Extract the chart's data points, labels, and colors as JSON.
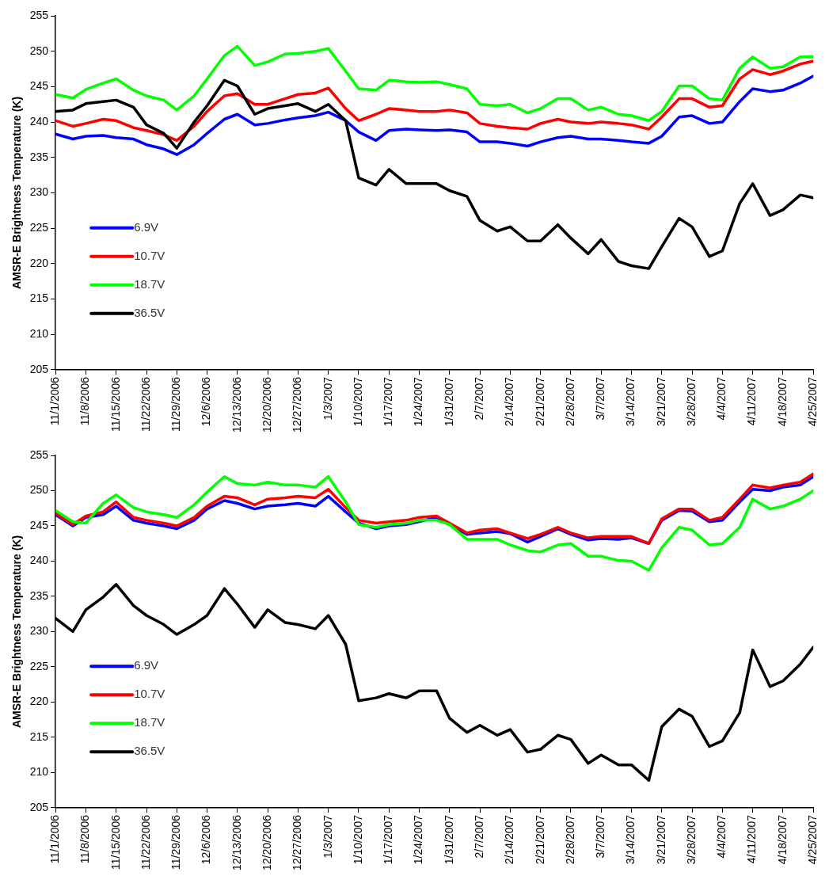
{
  "chart_data": [
    {
      "type": "line",
      "ylabel": "AMSR-E Brightness Temperature (K)",
      "x": [
        "2006-11-01",
        "2006-11-05",
        "2006-11-08",
        "2006-11-12",
        "2006-11-15",
        "2006-11-19",
        "2006-11-22",
        "2006-11-26",
        "2006-11-29",
        "2006-12-03",
        "2006-12-06",
        "2006-12-10",
        "2006-12-13",
        "2006-12-17",
        "2006-12-20",
        "2006-12-24",
        "2006-12-27",
        "2006-12-31",
        "2007-01-03",
        "2007-01-07",
        "2007-01-10",
        "2007-01-14",
        "2007-01-17",
        "2007-01-21",
        "2007-01-24",
        "2007-01-28",
        "2007-01-31",
        "2007-02-04",
        "2007-02-07",
        "2007-02-11",
        "2007-02-14",
        "2007-02-18",
        "2007-02-21",
        "2007-02-25",
        "2007-02-28",
        "2007-03-04",
        "2007-03-07",
        "2007-03-11",
        "2007-03-14",
        "2007-03-18",
        "2007-03-21",
        "2007-03-25",
        "2007-03-28",
        "2007-04-01",
        "2007-04-04",
        "2007-04-08",
        "2007-04-11",
        "2007-04-15",
        "2007-04-18",
        "2007-04-22",
        "2007-04-25"
      ],
      "series": [
        {
          "name": "6.9V",
          "color": "#0000ff",
          "values": [
            238.3,
            237.6,
            238.0,
            238.1,
            237.8,
            237.6,
            236.8,
            236.2,
            235.4,
            236.8,
            238.4,
            240.4,
            241.1,
            239.6,
            239.8,
            240.3,
            240.6,
            240.9,
            241.4,
            240.2,
            238.6,
            237.4,
            238.8,
            239.0,
            238.9,
            238.8,
            238.9,
            238.6,
            237.2,
            237.2,
            237.0,
            236.6,
            237.2,
            237.8,
            238.0,
            237.6,
            237.6,
            237.4,
            237.2,
            237.0,
            238.0,
            240.7,
            240.9,
            239.8,
            240.0,
            242.9,
            244.7,
            244.3,
            244.5,
            245.5,
            246.5
          ]
        },
        {
          "name": "10.7V",
          "color": "#ff0000",
          "values": [
            240.2,
            239.4,
            239.8,
            240.4,
            240.2,
            239.2,
            238.8,
            238.2,
            237.4,
            239.4,
            241.5,
            243.7,
            244.0,
            242.5,
            242.5,
            243.3,
            243.9,
            244.1,
            244.8,
            241.9,
            240.2,
            241.1,
            241.9,
            241.7,
            241.5,
            241.5,
            241.7,
            241.3,
            239.8,
            239.4,
            239.2,
            239.0,
            239.8,
            240.4,
            240.0,
            239.8,
            240.0,
            239.8,
            239.6,
            239.0,
            240.7,
            243.3,
            243.3,
            242.1,
            242.3,
            246.1,
            247.4,
            246.7,
            247.2,
            248.2,
            248.6
          ]
        },
        {
          "name": "18.7V",
          "color": "#00ff00",
          "values": [
            243.9,
            243.4,
            244.6,
            245.5,
            246.1,
            244.5,
            243.7,
            243.1,
            241.7,
            243.7,
            246.1,
            249.4,
            250.7,
            248.0,
            248.5,
            249.6,
            249.7,
            250.0,
            250.4,
            247.2,
            244.7,
            244.5,
            245.9,
            245.7,
            245.6,
            245.7,
            245.3,
            244.7,
            242.5,
            242.3,
            242.5,
            241.3,
            241.9,
            243.3,
            243.3,
            241.7,
            242.1,
            241.1,
            240.9,
            240.2,
            241.5,
            245.1,
            245.1,
            243.3,
            243.1,
            247.6,
            249.2,
            247.6,
            247.8,
            249.2,
            249.2
          ]
        },
        {
          "name": "36.5V",
          "color": "#000000",
          "values": [
            241.5,
            241.7,
            242.6,
            242.9,
            243.1,
            242.1,
            239.6,
            238.4,
            236.3,
            240.0,
            242.3,
            245.9,
            245.1,
            241.1,
            241.9,
            242.3,
            242.6,
            241.5,
            242.5,
            240.2,
            232.1,
            231.1,
            233.3,
            231.3,
            231.3,
            231.3,
            230.3,
            229.5,
            226.1,
            224.6,
            225.2,
            223.2,
            223.2,
            225.5,
            223.6,
            221.4,
            223.4,
            220.3,
            219.7,
            219.3,
            222.4,
            226.4,
            225.2,
            221.0,
            221.8,
            228.5,
            231.3,
            226.8,
            227.6,
            229.7,
            229.3
          ]
        }
      ],
      "xlim": [
        "2006-11-01",
        "2007-04-25"
      ],
      "xticks": [
        {
          "value": "2006-11-01",
          "label": "11/1/2006"
        },
        {
          "value": "2006-11-08",
          "label": "11/8/2006"
        },
        {
          "value": "2006-11-15",
          "label": "11/15/2006"
        },
        {
          "value": "2006-11-22",
          "label": "11/22/2006"
        },
        {
          "value": "2006-11-29",
          "label": "11/29/2006"
        },
        {
          "value": "2006-12-06",
          "label": "12/6/2006"
        },
        {
          "value": "2006-12-13",
          "label": "12/13/2006"
        },
        {
          "value": "2006-12-20",
          "label": "12/20/2006"
        },
        {
          "value": "2006-12-27",
          "label": "12/27/2006"
        },
        {
          "value": "2007-01-03",
          "label": "1/3/2007"
        },
        {
          "value": "2007-01-10",
          "label": "1/10/2007"
        },
        {
          "value": "2007-01-17",
          "label": "1/17/2007"
        },
        {
          "value": "2007-01-24",
          "label": "1/24/2007"
        },
        {
          "value": "2007-01-31",
          "label": "1/31/2007"
        },
        {
          "value": "2007-02-07",
          "label": "2/7/2007"
        },
        {
          "value": "2007-02-14",
          "label": "2/14/2007"
        },
        {
          "value": "2007-02-21",
          "label": "2/21/2007"
        },
        {
          "value": "2007-02-28",
          "label": "2/28/2007"
        },
        {
          "value": "2007-03-07",
          "label": "3/7/2007"
        },
        {
          "value": "2007-03-14",
          "label": "3/14/2007"
        },
        {
          "value": "2007-03-21",
          "label": "3/21/2007"
        },
        {
          "value": "2007-03-28",
          "label": "3/28/2007"
        },
        {
          "value": "2007-04-04",
          "label": "4/4/2007"
        },
        {
          "value": "2007-04-11",
          "label": "4/11/2007"
        },
        {
          "value": "2007-04-18",
          "label": "4/18/2007"
        },
        {
          "value": "2007-04-25",
          "label": "4/25/2007"
        }
      ],
      "ylim": [
        205,
        255
      ],
      "yticks": [
        205,
        210,
        215,
        220,
        225,
        230,
        235,
        240,
        245,
        250,
        255
      ],
      "grid": false,
      "legend": "left",
      "marker": "none",
      "line_style": "solid"
    },
    {
      "type": "line",
      "ylabel": "AMSR-E Brightness Temperature (K)",
      "x": [
        "2006-11-01",
        "2006-11-05",
        "2006-11-08",
        "2006-11-12",
        "2006-11-15",
        "2006-11-19",
        "2006-11-22",
        "2006-11-26",
        "2006-11-29",
        "2006-12-03",
        "2006-12-06",
        "2006-12-10",
        "2006-12-13",
        "2006-12-17",
        "2006-12-20",
        "2006-12-24",
        "2006-12-27",
        "2006-12-31",
        "2007-01-03",
        "2007-01-07",
        "2007-01-10",
        "2007-01-14",
        "2007-01-17",
        "2007-01-21",
        "2007-01-24",
        "2007-01-28",
        "2007-01-31",
        "2007-02-04",
        "2007-02-07",
        "2007-02-11",
        "2007-02-14",
        "2007-02-18",
        "2007-02-21",
        "2007-02-25",
        "2007-02-28",
        "2007-03-04",
        "2007-03-07",
        "2007-03-11",
        "2007-03-14",
        "2007-03-18",
        "2007-03-21",
        "2007-03-25",
        "2007-03-28",
        "2007-04-01",
        "2007-04-04",
        "2007-04-08",
        "2007-04-11",
        "2007-04-15",
        "2007-04-18",
        "2007-04-22",
        "2007-04-25"
      ],
      "series": [
        {
          "name": "6.9V",
          "color": "#0000ff",
          "values": [
            246.6,
            245.0,
            246.2,
            246.6,
            247.8,
            245.8,
            245.4,
            245.0,
            244.6,
            245.8,
            247.4,
            248.6,
            248.2,
            247.4,
            247.8,
            248.0,
            248.2,
            247.8,
            249.2,
            247.0,
            245.4,
            244.6,
            245.0,
            245.2,
            245.6,
            246.2,
            245.2,
            243.8,
            244.0,
            244.2,
            243.9,
            242.7,
            243.5,
            244.6,
            243.8,
            243.0,
            243.2,
            243.1,
            243.3,
            242.5,
            245.8,
            247.2,
            247.1,
            245.6,
            245.8,
            248.4,
            250.2,
            250.0,
            250.5,
            250.8,
            252.0
          ]
        },
        {
          "name": "10.7V",
          "color": "#ff0000",
          "values": [
            246.8,
            245.2,
            246.4,
            247.0,
            248.4,
            246.2,
            245.8,
            245.4,
            245.0,
            246.2,
            247.8,
            249.2,
            249.0,
            248.0,
            248.8,
            249.0,
            249.2,
            249.0,
            250.2,
            247.6,
            245.8,
            245.4,
            245.6,
            245.8,
            246.2,
            246.4,
            245.4,
            244.0,
            244.4,
            244.6,
            244.0,
            243.2,
            243.8,
            244.8,
            244.0,
            243.3,
            243.5,
            243.5,
            243.5,
            242.5,
            246.0,
            247.4,
            247.4,
            245.8,
            246.2,
            248.8,
            250.8,
            250.4,
            250.8,
            251.2,
            252.4
          ]
        },
        {
          "name": "18.7V",
          "color": "#00ff00",
          "values": [
            247.2,
            245.6,
            245.4,
            248.2,
            249.4,
            247.6,
            247.0,
            246.6,
            246.2,
            248.0,
            249.8,
            252.0,
            251.0,
            250.8,
            251.2,
            250.8,
            250.8,
            250.5,
            252.0,
            248.4,
            245.2,
            244.8,
            245.2,
            245.4,
            245.8,
            245.8,
            245.2,
            243.1,
            243.1,
            243.1,
            242.3,
            241.5,
            241.3,
            242.3,
            242.5,
            240.7,
            240.7,
            240.1,
            240.0,
            238.7,
            241.9,
            244.8,
            244.4,
            242.3,
            242.5,
            244.8,
            248.8,
            247.4,
            247.8,
            248.8,
            250.0
          ]
        },
        {
          "name": "36.5V",
          "color": "#000000",
          "values": [
            231.9,
            230.0,
            233.1,
            234.9,
            236.7,
            233.7,
            232.3,
            231.0,
            229.6,
            231.0,
            232.3,
            236.1,
            233.9,
            230.6,
            233.1,
            231.3,
            231.0,
            230.4,
            232.3,
            228.2,
            220.2,
            220.6,
            221.2,
            220.6,
            221.6,
            221.6,
            217.7,
            215.7,
            216.7,
            215.3,
            216.1,
            212.9,
            213.3,
            215.3,
            214.7,
            211.3,
            212.5,
            211.1,
            211.1,
            208.9,
            216.5,
            219.0,
            218.0,
            213.7,
            214.5,
            218.5,
            227.4,
            222.2,
            223.0,
            225.4,
            227.8
          ]
        }
      ],
      "xlim": [
        "2006-11-01",
        "2007-04-25"
      ],
      "xticks": [
        {
          "value": "2006-11-01",
          "label": "11/1/2006"
        },
        {
          "value": "2006-11-08",
          "label": "11/8/2006"
        },
        {
          "value": "2006-11-15",
          "label": "11/15/2006"
        },
        {
          "value": "2006-11-22",
          "label": "11/22/2006"
        },
        {
          "value": "2006-11-29",
          "label": "11/29/2006"
        },
        {
          "value": "2006-12-06",
          "label": "12/6/2006"
        },
        {
          "value": "2006-12-13",
          "label": "12/13/2006"
        },
        {
          "value": "2006-12-20",
          "label": "12/20/2006"
        },
        {
          "value": "2006-12-27",
          "label": "12/27/2006"
        },
        {
          "value": "2007-01-03",
          "label": "1/3/2007"
        },
        {
          "value": "2007-01-10",
          "label": "1/10/2007"
        },
        {
          "value": "2007-01-17",
          "label": "1/17/2007"
        },
        {
          "value": "2007-01-24",
          "label": "1/24/2007"
        },
        {
          "value": "2007-01-31",
          "label": "1/31/2007"
        },
        {
          "value": "2007-02-07",
          "label": "2/7/2007"
        },
        {
          "value": "2007-02-14",
          "label": "2/14/2007"
        },
        {
          "value": "2007-02-21",
          "label": "2/21/2007"
        },
        {
          "value": "2007-02-28",
          "label": "2/28/2007"
        },
        {
          "value": "2007-03-07",
          "label": "3/7/2007"
        },
        {
          "value": "2007-03-14",
          "label": "3/14/2007"
        },
        {
          "value": "2007-03-21",
          "label": "3/21/2007"
        },
        {
          "value": "2007-03-28",
          "label": "3/28/2007"
        },
        {
          "value": "2007-04-04",
          "label": "4/4/2007"
        },
        {
          "value": "2007-04-11",
          "label": "4/11/2007"
        },
        {
          "value": "2007-04-18",
          "label": "4/18/2007"
        },
        {
          "value": "2007-04-25",
          "label": "4/25/2007"
        }
      ],
      "ylim": [
        205,
        255
      ],
      "yticks": [
        205,
        210,
        215,
        220,
        225,
        230,
        235,
        240,
        245,
        250,
        255
      ],
      "grid": false,
      "legend": "left",
      "marker": "none",
      "line_style": "solid"
    }
  ]
}
